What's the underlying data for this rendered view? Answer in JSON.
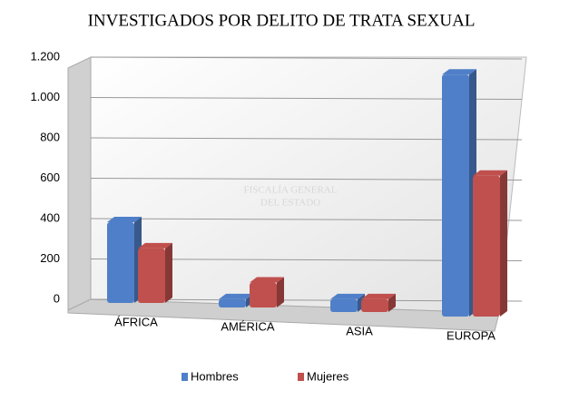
{
  "chart_data": {
    "type": "bar",
    "title": "INVESTIGADOS POR DELITO DE TRATA SEXUAL",
    "watermark": [
      "FISCALÍA GENERAL",
      "DEL ESTADO"
    ],
    "categories": [
      "ÁFRICA",
      "AMÉRICA",
      "ASIA",
      "EUROPA"
    ],
    "series": [
      {
        "name": "Hombres",
        "color": "#4f7fc8",
        "values": [
          400,
          40,
          60,
          1100
        ]
      },
      {
        "name": "Mujeres",
        "color": "#c0504d",
        "values": [
          270,
          120,
          60,
          640
        ]
      }
    ],
    "ylim": [
      0,
      1200
    ],
    "yticks": [
      0,
      200,
      400,
      600,
      800,
      {
        "value": 1000,
        "label": "1.000"
      },
      {
        "value": 1200,
        "label": "1.200"
      }
    ],
    "grid": true,
    "legend": "bottom"
  }
}
